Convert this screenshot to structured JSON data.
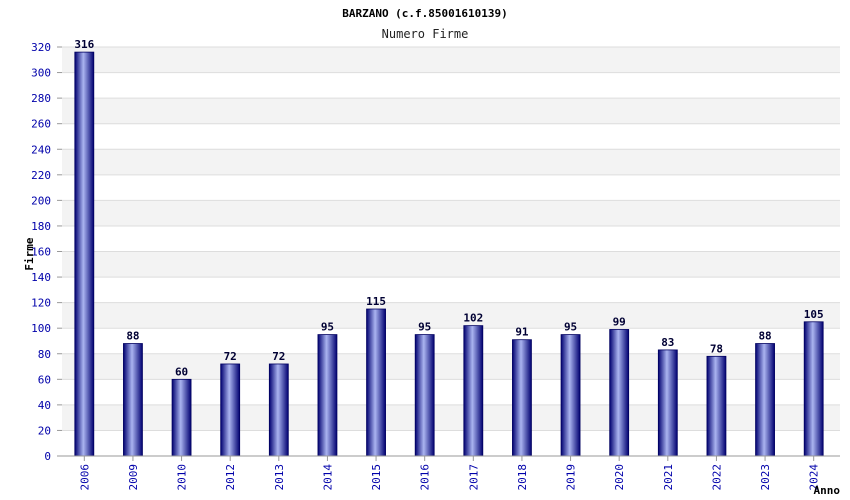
{
  "chart_data": {
    "type": "bar",
    "title": "BARZANO (c.f.85001610139)",
    "subtitle": "Numero Firme",
    "xlabel": "Anno",
    "ylabel": "Firme",
    "categories": [
      "2006",
      "2009",
      "2010",
      "2012",
      "2013",
      "2014",
      "2015",
      "2016",
      "2017",
      "2018",
      "2019",
      "2020",
      "2021",
      "2022",
      "2023",
      "2024"
    ],
    "values": [
      316,
      88,
      60,
      72,
      72,
      95,
      115,
      95,
      102,
      91,
      95,
      99,
      83,
      78,
      88,
      105
    ],
    "ylim": [
      0,
      320
    ],
    "ytick_step": 20,
    "grid": "horizontal-bands",
    "colors": {
      "bar_dark": "#000080",
      "bar_light": "#aab4f0",
      "band": "#f3f3f3",
      "grid": "#dddddd",
      "tick_text": "#0000aa"
    }
  }
}
